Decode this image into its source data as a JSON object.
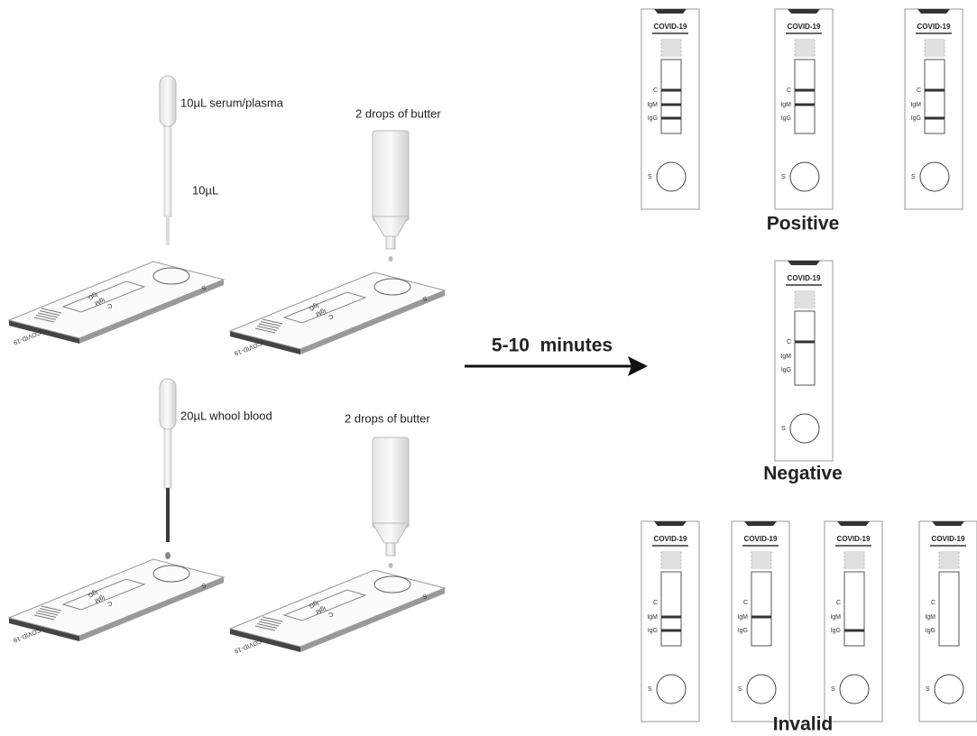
{
  "steps": [
    {
      "sample_label": "10µL serum/plasma",
      "volume_label": "10µL",
      "buffer_label": "2 drops of butter",
      "slides": [
        {
          "brand": "COVID-19",
          "marks": [
            "C",
            "IgM",
            "IgG"
          ],
          "sample": "S"
        },
        {
          "brand": "COVID-19",
          "marks": [
            "C",
            "IgM",
            "IgG"
          ],
          "sample": "S"
        }
      ]
    },
    {
      "sample_label": "20µL whool blood",
      "buffer_label": "2 drops of butter",
      "slides": [
        {
          "brand": "COVID-19",
          "marks": [
            "C",
            "IgM",
            "IgG"
          ],
          "sample": "S"
        },
        {
          "brand": "COVID-19",
          "marks": [
            "C",
            "IgM",
            "IgG"
          ],
          "sample": "S"
        }
      ]
    }
  ],
  "arrow_label": "5-10  minutes",
  "results": [
    {
      "label": "Positive",
      "cassettes": [
        {
          "brand": "COVID-19",
          "marks": [
            "C",
            "IgM",
            "IgG"
          ],
          "sample": "S",
          "lines": [
            true,
            true,
            true
          ]
        },
        {
          "brand": "COVID-19",
          "marks": [
            "C",
            "IgM",
            "IgG"
          ],
          "sample": "S",
          "lines": [
            true,
            true,
            false
          ]
        },
        {
          "brand": "COVID-19",
          "marks": [
            "C",
            "IgM",
            "IgG"
          ],
          "sample": "S",
          "lines": [
            true,
            false,
            true
          ]
        }
      ]
    },
    {
      "label": "Negative",
      "cassettes": [
        {
          "brand": "COVID-19",
          "marks": [
            "C",
            "IgM",
            "IgG"
          ],
          "sample": "S",
          "lines": [
            true,
            false,
            false
          ]
        }
      ]
    },
    {
      "label": "Invalid",
      "cassettes": [
        {
          "brand": "COVID-19",
          "marks": [
            "C",
            "IgM",
            "IgG"
          ],
          "sample": "S",
          "lines": [
            false,
            true,
            true
          ]
        },
        {
          "brand": "COVID-19",
          "marks": [
            "C",
            "IgM",
            "IgG"
          ],
          "sample": "S",
          "lines": [
            false,
            true,
            false
          ]
        },
        {
          "brand": "COVID-19",
          "marks": [
            "C",
            "IgM",
            "IgG"
          ],
          "sample": "S",
          "lines": [
            false,
            false,
            true
          ]
        },
        {
          "brand": "COVID-19",
          "marks": [
            "C",
            "IgM",
            "IgG"
          ],
          "sample": "S",
          "lines": [
            false,
            false,
            false
          ]
        }
      ]
    }
  ]
}
